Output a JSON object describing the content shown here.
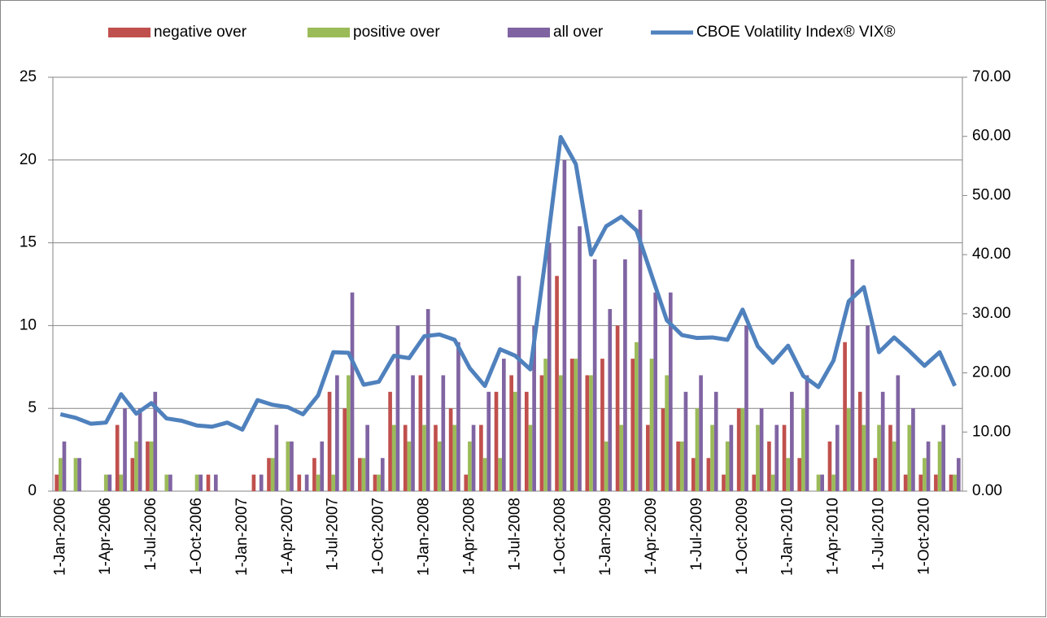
{
  "chart_data": {
    "type": "bar_line",
    "categories": [
      "1-Jan-2006",
      null,
      null,
      "1-Apr-2006",
      null,
      null,
      "1-Jul-2006",
      null,
      null,
      "1-Oct-2006",
      null,
      null,
      "1-Jan-2007",
      null,
      null,
      "1-Apr-2007",
      null,
      null,
      "1-Jul-2007",
      null,
      null,
      "1-Oct-2007",
      null,
      null,
      "1-Jan-2008",
      null,
      null,
      "1-Apr-2008",
      null,
      null,
      "1-Jul-2008",
      null,
      null,
      "1-Oct-2008",
      null,
      null,
      "1-Jan-2009",
      null,
      null,
      "1-Apr-2009",
      null,
      null,
      "1-Jul-2009",
      null,
      null,
      "1-Oct-2009",
      null,
      null,
      "1-Jan-2010",
      null,
      null,
      "1-Apr-2010",
      null,
      null,
      "1-Jul-2010",
      null,
      null,
      "1-Oct-2010",
      null,
      null
    ],
    "series": [
      {
        "name": "negative over",
        "color": "#c0504d",
        "type": "bar",
        "values": [
          1,
          0,
          0,
          0,
          4,
          2,
          3,
          0,
          0,
          0,
          1,
          0,
          0,
          1,
          2,
          0,
          1,
          2,
          6,
          5,
          2,
          1,
          6,
          4,
          7,
          4,
          5,
          1,
          4,
          6,
          7,
          6,
          7,
          13,
          8,
          7,
          8,
          10,
          8,
          4,
          5,
          3,
          2,
          2,
          1,
          5,
          1,
          3,
          4,
          2,
          0,
          3,
          9,
          6,
          2,
          4,
          1,
          1,
          1,
          1
        ]
      },
      {
        "name": "positive over",
        "color": "#9bbb59",
        "type": "bar",
        "values": [
          2,
          2,
          0,
          1,
          1,
          3,
          3,
          1,
          0,
          1,
          0,
          0,
          0,
          0,
          2,
          3,
          0,
          1,
          1,
          7,
          2,
          1,
          4,
          3,
          4,
          3,
          4,
          3,
          2,
          2,
          6,
          4,
          8,
          7,
          8,
          7,
          3,
          4,
          9,
          8,
          7,
          3,
          5,
          4,
          3,
          5,
          4,
          1,
          2,
          5,
          1,
          1,
          5,
          4,
          4,
          3,
          4,
          2,
          3,
          1
        ]
      },
      {
        "name": "all over",
        "color": "#8064a2",
        "type": "bar",
        "values": [
          3,
          2,
          0,
          1,
          5,
          5,
          6,
          1,
          0,
          1,
          1,
          0,
          0,
          1,
          4,
          3,
          1,
          3,
          7,
          12,
          4,
          2,
          10,
          7,
          11,
          7,
          9,
          4,
          6,
          8,
          13,
          10,
          15,
          20,
          16,
          14,
          11,
          14,
          17,
          12,
          12,
          6,
          7,
          6,
          4,
          10,
          5,
          4,
          6,
          7,
          1,
          4,
          14,
          10,
          6,
          7,
          5,
          3,
          4,
          2
        ]
      },
      {
        "name": "CBOE Volatility Index® VIX®",
        "color": "#4f81bd",
        "type": "line",
        "axis": "y2",
        "values": [
          13.0,
          12.4,
          11.4,
          11.6,
          16.4,
          13.1,
          14.9,
          12.3,
          11.9,
          11.1,
          10.9,
          11.6,
          10.4,
          15.4,
          14.6,
          14.2,
          13.0,
          16.2,
          23.5,
          23.4,
          18.0,
          18.5,
          22.9,
          22.5,
          26.2,
          26.5,
          25.6,
          20.8,
          17.8,
          24.0,
          22.9,
          20.6,
          39.4,
          59.9,
          55.3,
          40.0,
          44.8,
          46.4,
          44.1,
          36.5,
          28.9,
          26.4,
          25.9,
          26.0,
          25.6,
          30.7,
          24.5,
          21.7,
          24.6,
          19.5,
          17.6,
          22.1,
          32.1,
          34.5,
          23.5,
          26.0,
          23.7,
          21.2,
          23.5,
          17.8
        ]
      }
    ],
    "ylim": [
      0,
      25
    ],
    "yticks": [
      0,
      5,
      10,
      15,
      20,
      25
    ],
    "y2lim": [
      0,
      70
    ],
    "y2ticks": [
      {
        "value": 0,
        "label": "0.00"
      },
      {
        "value": 10,
        "label": "10.00"
      },
      {
        "value": 20,
        "label": "20.00"
      },
      {
        "value": 30,
        "label": "30.00"
      },
      {
        "value": 40,
        "label": "40.00"
      },
      {
        "value": 50,
        "label": "50.00"
      },
      {
        "value": 60,
        "label": "60.00"
      },
      {
        "value": 70,
        "label": "70.00"
      }
    ],
    "grid": true,
    "legend": "top"
  }
}
